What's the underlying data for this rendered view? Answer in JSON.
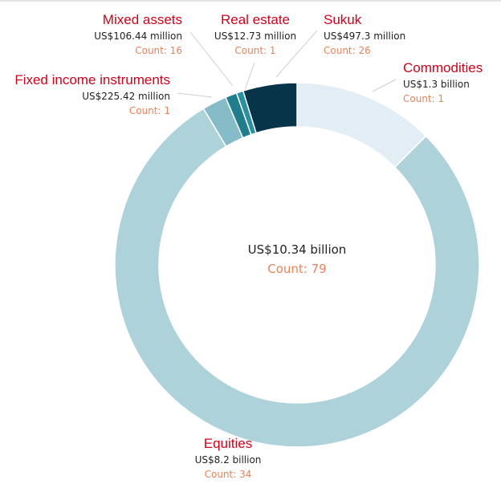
{
  "chart_data": {
    "type": "pie",
    "subtype": "donut",
    "unit": "US$ billion",
    "center": {
      "value_label": "US$10.34 billion",
      "count_label": "Count: 79"
    },
    "slices": [
      {
        "name": "Commodities",
        "value": 1.3,
        "value_label": "US$1.3 billion",
        "count": 1,
        "count_label": "Count: 1",
        "color": "#e3edf5"
      },
      {
        "name": "Equities",
        "value": 8.2,
        "value_label": "US$8.2 billion",
        "count": 34,
        "count_label": "Count: 34",
        "color": "#aed2da"
      },
      {
        "name": "Fixed income instruments",
        "value": 0.22542,
        "value_label": "US$225.42 million",
        "count": 1,
        "count_label": "Count: 1",
        "color": "#86bcc8"
      },
      {
        "name": "Mixed assets",
        "value": 0.10644,
        "value_label": "US$106.44 million",
        "count": 16,
        "count_label": "Count: 16",
        "color": "#1f7d8c"
      },
      {
        "name": "Real estate",
        "value": 0.01273,
        "value_label": "US$12.73 million",
        "count": 1,
        "count_label": "Count: 1",
        "color": "#2a8f9e"
      },
      {
        "name": "Sukuk",
        "value": 0.4973,
        "value_label": "US$497.3 million",
        "count": 26,
        "count_label": "Count: 26",
        "color": "#08344a"
      }
    ]
  }
}
